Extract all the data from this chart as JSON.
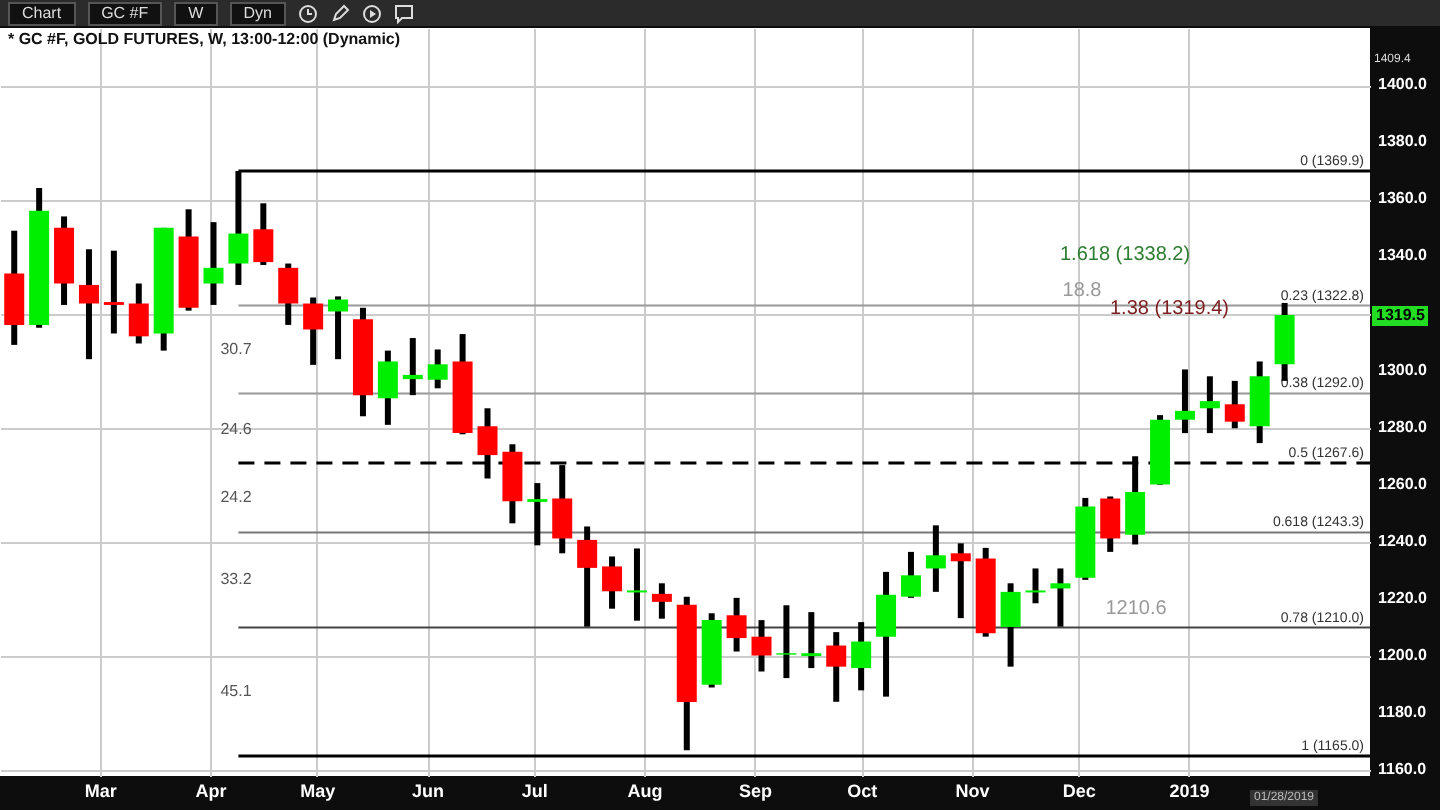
{
  "chart_data": {
    "type": "candlestick",
    "title": "* GC #F, GOLD FUTURES, W, 13:00-12:00 (Dynamic)",
    "x": [
      "2018-02-05",
      "2018-02-12",
      "2018-02-19",
      "2018-02-26",
      "2018-03-05",
      "2018-03-12",
      "2018-03-19",
      "2018-03-26",
      "2018-04-02",
      "2018-04-09",
      "2018-04-16",
      "2018-04-23",
      "2018-04-30",
      "2018-05-07",
      "2018-05-14",
      "2018-05-21",
      "2018-05-28",
      "2018-06-04",
      "2018-06-11",
      "2018-06-18",
      "2018-06-25",
      "2018-07-02",
      "2018-07-09",
      "2018-07-16",
      "2018-07-23",
      "2018-07-30",
      "2018-08-06",
      "2018-08-13",
      "2018-08-20",
      "2018-08-27",
      "2018-09-03",
      "2018-09-10",
      "2018-09-17",
      "2018-09-24",
      "2018-10-01",
      "2018-10-08",
      "2018-10-15",
      "2018-10-22",
      "2018-10-29",
      "2018-11-05",
      "2018-11-12",
      "2018-11-19",
      "2018-11-26",
      "2018-12-03",
      "2018-12-10",
      "2018-12-17",
      "2018-12-24",
      "2018-12-31",
      "2019-01-07",
      "2019-01-14",
      "2019-01-21",
      "2019-01-28"
    ],
    "ohlc": [
      [
        1334,
        1349,
        1309,
        1316
      ],
      [
        1316,
        1364,
        1315,
        1356
      ],
      [
        1350,
        1354,
        1323,
        1330.5
      ],
      [
        1330,
        1342.5,
        1304,
        1323.5
      ],
      [
        1324,
        1342,
        1313,
        1323
      ],
      [
        1323.5,
        1330.5,
        1309.5,
        1312
      ],
      [
        1313,
        1350,
        1307,
        1350
      ],
      [
        1347,
        1356.5,
        1321,
        1322
      ],
      [
        1330.5,
        1352,
        1323,
        1336
      ],
      [
        1337.5,
        1369.9,
        1330,
        1348
      ],
      [
        1349.5,
        1358.6,
        1337,
        1338
      ],
      [
        1336,
        1337.5,
        1316,
        1323.5
      ],
      [
        1323.5,
        1325.6,
        1302,
        1314.4
      ],
      [
        1320.7,
        1326,
        1304,
        1324.9
      ],
      [
        1318,
        1322,
        1284,
        1291.4
      ],
      [
        1290.3,
        1307,
        1281,
        1303.2
      ],
      [
        1297,
        1311.4,
        1291.4,
        1298.5
      ],
      [
        1296.8,
        1307.4,
        1293.8,
        1302.2
      ],
      [
        1303.2,
        1312.8,
        1277.7,
        1278.1
      ],
      [
        1280.5,
        1286.8,
        1262.2,
        1270.4
      ],
      [
        1271.6,
        1274.2,
        1246.5,
        1254.2
      ],
      [
        1254,
        1260.6,
        1238.8,
        1255
      ],
      [
        1255.2,
        1266.9,
        1236,
        1241.2
      ],
      [
        1240.7,
        1245.4,
        1210.3,
        1230.9
      ],
      [
        1231.4,
        1234.9,
        1216.6,
        1222.7
      ],
      [
        1222.3,
        1237.7,
        1212.4,
        1223
      ],
      [
        1221.8,
        1225.5,
        1213.1,
        1219
      ],
      [
        1218,
        1220.8,
        1167,
        1183.9
      ],
      [
        1190,
        1215,
        1189,
        1212.6
      ],
      [
        1214.3,
        1220.4,
        1201.6,
        1206.3
      ],
      [
        1206.8,
        1212.6,
        1194.6,
        1200.2
      ],
      [
        1200.5,
        1217.8,
        1192.3,
        1201
      ],
      [
        1200,
        1215.4,
        1195.8,
        1201
      ],
      [
        1203.7,
        1208.4,
        1184,
        1196.3
      ],
      [
        1195.8,
        1211.9,
        1188,
        1205.1
      ],
      [
        1206.8,
        1229.5,
        1185.8,
        1221.5
      ],
      [
        1220.8,
        1236.5,
        1220.4,
        1228.3
      ],
      [
        1230.7,
        1245.8,
        1222.5,
        1235.3
      ],
      [
        1236,
        1239.5,
        1213.3,
        1233.2
      ],
      [
        1234.2,
        1237.9,
        1206.8,
        1208
      ],
      [
        1210.2,
        1225.5,
        1196.3,
        1222.5
      ],
      [
        1222.3,
        1230.7,
        1218.5,
        1223
      ],
      [
        1223.7,
        1230.7,
        1210.3,
        1225.5
      ],
      [
        1227.4,
        1255.4,
        1226.7,
        1252.4
      ],
      [
        1255.2,
        1255.9,
        1236.5,
        1241.2
      ],
      [
        1242.5,
        1270,
        1239.1,
        1257.5
      ],
      [
        1260.1,
        1284.4,
        1260,
        1282.8
      ],
      [
        1282.8,
        1300.4,
        1278.1,
        1285.9
      ],
      [
        1286.8,
        1298,
        1278.1,
        1289.3
      ],
      [
        1288.2,
        1296.4,
        1279.8,
        1282.1
      ],
      [
        1280.5,
        1303.2,
        1274.6,
        1298
      ],
      [
        1302.2,
        1323.7,
        1296.4,
        1319.5
      ]
    ],
    "colors": [
      "#ff0000",
      "#00ee00",
      "#ff0000",
      "#ff0000",
      "#ff0000",
      "#ff0000",
      "#00ee00",
      "#ff0000",
      "#00ee00",
      "#00ee00",
      "#ff0000",
      "#ff0000",
      "#ff0000",
      "#00ee00",
      "#ff0000",
      "#00ee00",
      "#00ee00",
      "#00ee00",
      "#ff0000",
      "#ff0000",
      "#ff0000",
      "#00ee00",
      "#ff0000",
      "#ff0000",
      "#ff0000",
      "#00ee00",
      "#ff0000",
      "#ff0000",
      "#00ee00",
      "#ff0000",
      "#ff0000",
      "#00ee00",
      "#00ee00",
      "#ff0000",
      "#00ee00",
      "#00ee00",
      "#00ee00",
      "#00ee00",
      "#ff0000",
      "#ff0000",
      "#00ee00",
      "#00ee00",
      "#00ee00",
      "#00ee00",
      "#ff0000",
      "#00ee00",
      "#00ee00",
      "#00ee00",
      "#00ee00",
      "#ff0000",
      "#00ee00",
      "#00ee00"
    ],
    "xlim": [
      "2018-02-01",
      "2019-02-21"
    ],
    "xticks": [
      {
        "value": "2018-03-01",
        "label": "Mar"
      },
      {
        "value": "2018-04-01",
        "label": "Apr"
      },
      {
        "value": "2018-05-01",
        "label": "May"
      },
      {
        "value": "2018-06-01",
        "label": "Jun"
      },
      {
        "value": "2018-07-01",
        "label": "Jul"
      },
      {
        "value": "2018-08-01",
        "label": "Aug"
      },
      {
        "value": "2018-09-01",
        "label": "Sep"
      },
      {
        "value": "2018-10-01",
        "label": "Oct"
      },
      {
        "value": "2018-11-01",
        "label": "Nov"
      },
      {
        "value": "2018-12-01",
        "label": "Dec"
      },
      {
        "value": "2019-01-01",
        "label": "2019"
      }
    ],
    "ylim": [
      1158,
      1420
    ],
    "yticks": [
      {
        "value": 1160,
        "label": "1160.0"
      },
      {
        "value": 1180,
        "label": "1180.0"
      },
      {
        "value": 1200,
        "label": "1200.0"
      },
      {
        "value": 1220,
        "label": "1220.0"
      },
      {
        "value": 1240,
        "label": "1240.0"
      },
      {
        "value": 1260,
        "label": "1260.0"
      },
      {
        "value": 1280,
        "label": "1280.0"
      },
      {
        "value": 1300,
        "label": "1300.0"
      },
      {
        "value": 1320,
        "label": null
      },
      {
        "value": 1340,
        "label": "1340.0"
      },
      {
        "value": 1360,
        "label": "1360.0"
      },
      {
        "value": 1380,
        "label": "1380.0"
      },
      {
        "value": 1400,
        "label": "1400.0"
      },
      {
        "value": 1420,
        "label": null
      }
    ],
    "grid": true,
    "ref_lines": [
      {
        "axis": "y",
        "value": 1369.9,
        "label": "0 (1369.9)",
        "color": "#000000"
      },
      {
        "axis": "y",
        "value": 1322.8,
        "label": "0.23 (1322.8)",
        "color": "#999999"
      },
      {
        "axis": "y",
        "value": 1292.0,
        "label": "0.38 (1292.0)",
        "color": "#999999"
      },
      {
        "axis": "y",
        "value": 1267.6,
        "label": "0.5 (1267.6)",
        "color": "#000000",
        "line_style": "dashed"
      },
      {
        "axis": "y",
        "value": 1243.3,
        "label": "0.618 (1243.3)",
        "color": "#777777"
      },
      {
        "axis": "y",
        "value": 1210.0,
        "label": "0.78 (1210.0)",
        "color": "#444444"
      },
      {
        "axis": "y",
        "value": 1165.0,
        "label": "1 (1165.0)",
        "color": "#000000"
      }
    ],
    "annotations": [
      "Chart",
      "GC #F",
      "W",
      "Dyn",
      "30.7",
      "24.6",
      "24.2",
      "33.2",
      "45.1",
      "1.618 (1338.2)",
      "18.8",
      "1.38 (1319.4)",
      "1210.6",
      "1409.4",
      "1319.5",
      "01/28/2019"
    ]
  }
}
